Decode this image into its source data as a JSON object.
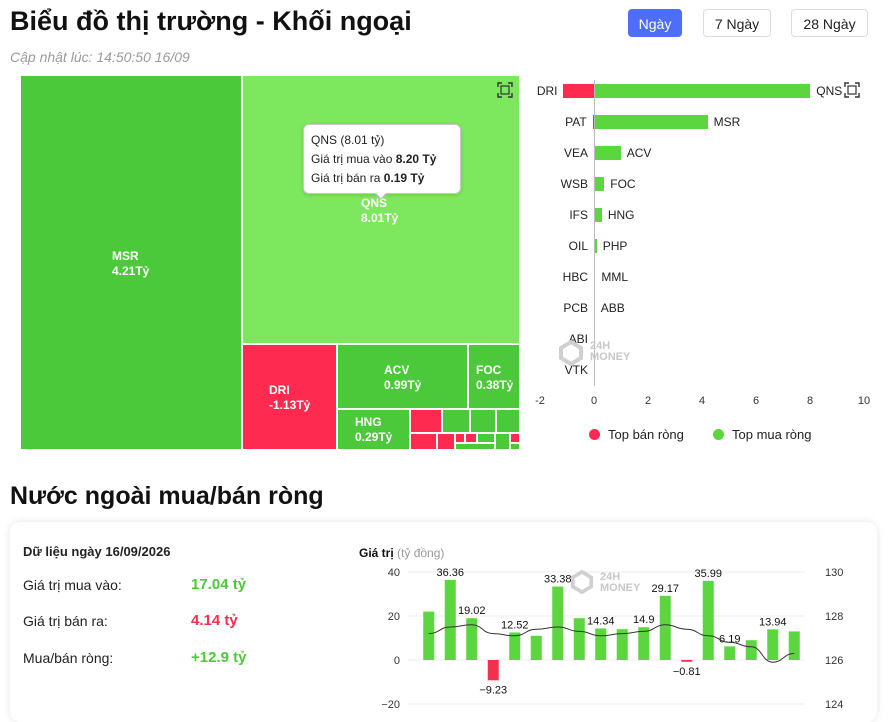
{
  "header": {
    "title": "Biểu đồ thị trường - Khối ngoại",
    "updated": "Cập nhật lúc: 14:50:50 16/09",
    "tabs": [
      {
        "label": "Ngày",
        "active": true
      },
      {
        "label": "7 Ngày",
        "active": false
      },
      {
        "label": "28 Ngày",
        "active": false
      }
    ]
  },
  "treemap": {
    "tiles": [
      {
        "ticker": "MSR",
        "value": "4.21Tỷ",
        "type": "buy"
      },
      {
        "ticker": "QNS",
        "value": "8.01Tỷ",
        "type": "buy"
      },
      {
        "ticker": "DRI",
        "value": "-1.13Tỷ",
        "type": "sell"
      },
      {
        "ticker": "ACV",
        "value": "0.99Tỷ",
        "type": "buy"
      },
      {
        "ticker": "FOC",
        "value": "0.38Tỷ",
        "type": "buy"
      },
      {
        "ticker": "HNG",
        "value": "0.29Tỷ",
        "type": "buy"
      }
    ],
    "tooltip": {
      "title": "QNS (8.01 tỷ)",
      "buy_label": "Giá trị mua vào",
      "buy_value": "8.20 Tỷ",
      "sell_label": "Giá trị bán ra",
      "sell_value": "0.19 Tỷ"
    },
    "expand_icon": "expand-icon"
  },
  "bar_chart": {
    "sell_tickers": [
      "DRI",
      "PAT",
      "VEA",
      "WSB",
      "IFS",
      "OIL",
      "HBC",
      "PCB",
      "ABI",
      "VTK"
    ],
    "sell_values": [
      -1.13,
      -0.05,
      0,
      0,
      0,
      0,
      0,
      0,
      0,
      0
    ],
    "buy_tickers": [
      "QNS",
      "MSR",
      "ACV",
      "FOC",
      "HNG",
      "PHP",
      "MML",
      "ABB"
    ],
    "buy_values": [
      8.01,
      4.21,
      0.99,
      0.38,
      0.29,
      0.1,
      0.05,
      0.03
    ],
    "xticks": [
      "-2",
      "0",
      "2",
      "4",
      "6",
      "8",
      "10"
    ],
    "xlim": [
      -2,
      10
    ],
    "legend": {
      "sell": "Top bán ròng",
      "buy": "Top mua ròng"
    },
    "colors": {
      "sell": "#ff2a4f",
      "buy": "#5cd63e"
    }
  },
  "watermark": {
    "line1": "24H",
    "line2": "MONEY"
  },
  "net_section": {
    "title": "Nước ngoài mua/bán ròng",
    "date_label": "Dữ liệu ngày 16/09/2026",
    "stats": [
      {
        "label": "Giá trị mua vào:",
        "value": "17.04 tỷ",
        "color": "#4cc93a"
      },
      {
        "label": "Giá trị bán ra:",
        "value": "4.14 tỷ",
        "color": "#f2314e"
      },
      {
        "label": "Mua/bán ròng:",
        "value": "+12.9 tỷ",
        "color": "#4cc93a"
      }
    ]
  },
  "chart_data": {
    "type": "bar",
    "ylabel": "Giá trị",
    "ylabel_unit": "(tỷ đồng)",
    "ylim": [
      -20,
      40
    ],
    "yticks_left": [
      "40",
      "20",
      "0",
      "-20"
    ],
    "yticks_right": [
      "130",
      "128",
      "126",
      "124"
    ],
    "y2lim": [
      124,
      130
    ],
    "values": [
      22,
      36.36,
      19.02,
      -9.23,
      12.52,
      11,
      33.38,
      19,
      14.34,
      14,
      14.9,
      29.17,
      -0.81,
      35.99,
      6.19,
      9,
      13.94,
      13
    ],
    "labels": [
      "",
      "36.36",
      "19.02",
      "-9.23",
      "12.52",
      "",
      "33.38",
      "",
      "14.34",
      "",
      "14.9",
      "29.17",
      "-0.81",
      "35.99",
      "6.19",
      "",
      "13.94",
      ""
    ],
    "line_values": [
      127.2,
      127.5,
      127.6,
      127.2,
      127.1,
      127.4,
      127.5,
      127.3,
      127.1,
      127.2,
      127.3,
      127.6,
      127.4,
      127.1,
      126.8,
      126.6,
      125.9,
      126.3
    ],
    "colors": {
      "positive": "#5cd63e",
      "negative": "#f2314e",
      "line": "#333333"
    }
  }
}
